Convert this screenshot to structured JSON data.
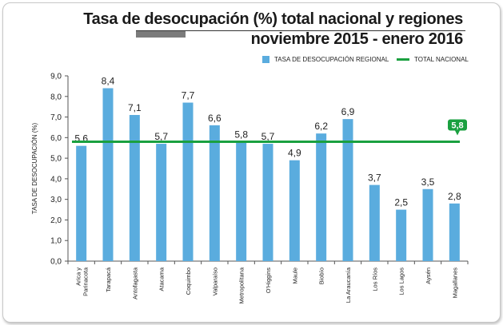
{
  "chart_data": {
    "type": "bar",
    "title": "Tasa de desocupación (%) total nacional y regiones",
    "subtitle": "noviembre 2015 - enero 2016",
    "ylabel": "TASA DE DESOCUPACIÓN (%)",
    "xlabel": "",
    "ylim": [
      0,
      9
    ],
    "yticks": [
      "0,0",
      "1,0",
      "2,0",
      "3,0",
      "4,0",
      "5,0",
      "6,0",
      "7,0",
      "8,0",
      "9,0"
    ],
    "categories": [
      [
        "Arica y",
        "Parinacota"
      ],
      [
        "Tarapacá"
      ],
      [
        "Antofagasta"
      ],
      [
        "Atacama"
      ],
      [
        "Coquimbo"
      ],
      [
        "Valparaíso"
      ],
      [
        "Metropolitana"
      ],
      [
        "O'Higgins"
      ],
      [
        "Maule"
      ],
      [
        "Biobío"
      ],
      [
        "La Araucanía"
      ],
      [
        "Los Ríos"
      ],
      [
        "Los Lagos"
      ],
      [
        "Aysén"
      ],
      [
        "Magallanes"
      ]
    ],
    "series": [
      {
        "name": "TASA DE DESOCUPACIÓN REGIONAL",
        "color": "#5aacde",
        "values": [
          5.6,
          8.4,
          7.1,
          5.7,
          7.7,
          6.6,
          5.8,
          5.7,
          4.9,
          6.2,
          6.9,
          3.7,
          2.5,
          3.5,
          2.8
        ],
        "labels": [
          "5,6",
          "8,4",
          "7,1",
          "5,7",
          "7,7",
          "6,6",
          "5,8",
          "5,7",
          "4,9",
          "6,2",
          "6,9",
          "3,7",
          "2,5",
          "3,5",
          "2,8"
        ]
      },
      {
        "name": "TOTAL NACIONAL",
        "color": "#1aa040",
        "value": 5.8,
        "label": "5,8"
      }
    ],
    "legend_position": "top-right",
    "grid": false
  }
}
